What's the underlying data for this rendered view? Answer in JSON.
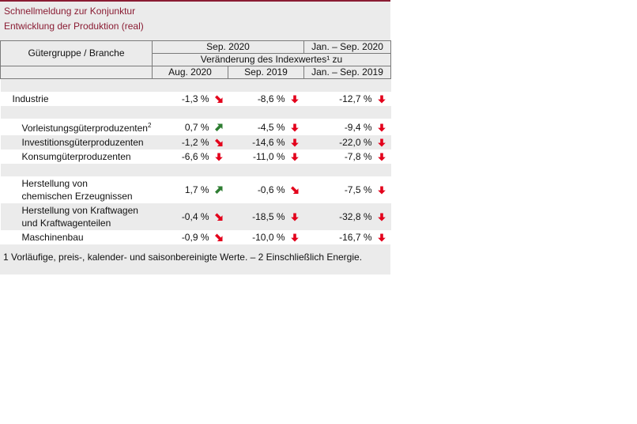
{
  "title_line1": "Schnellmeldung zur Konjunktur",
  "title_line2": "Entwicklung der Produktion (real)",
  "header": {
    "group_label": "Gütergruppe / Branche",
    "period1": "Sep. 2020",
    "period2": "Jan. – Sep. 2020",
    "change_label": "Veränderung des Indexwertes¹ zu",
    "col1": "Aug. 2020",
    "col2": "Sep. 2019",
    "col3": "Jan. – Sep. 2019"
  },
  "rows": [
    {
      "label": "Industrie",
      "v1": "-1,3 %",
      "a1": "down-right-arrow-icon",
      "v2": "-8,6 %",
      "a2": "down-arrow-icon",
      "v3": "-12,7 %",
      "a3": "down-arrow-icon"
    },
    {
      "label": "Vorleistungsgüterproduzenten",
      "sup": "2",
      "v1": "0,7 %",
      "a1": "up-right-arrow-icon",
      "v2": "-4,5 %",
      "a2": "down-arrow-icon",
      "v3": "-9,4 %",
      "a3": "down-arrow-icon"
    },
    {
      "label": "Investitionsgüterproduzenten",
      "v1": "-1,2 %",
      "a1": "down-right-arrow-icon",
      "v2": "-14,6 %",
      "a2": "down-arrow-icon",
      "v3": "-22,0 %",
      "a3": "down-arrow-icon"
    },
    {
      "label": "Konsumgüterproduzenten",
      "v1": "-6,6 %",
      "a1": "down-arrow-icon",
      "v2": "-11,0 %",
      "a2": "down-arrow-icon",
      "v3": "-7,8 %",
      "a3": "down-arrow-icon"
    },
    {
      "label_line1": "Herstellung von",
      "label_line2": "chemischen Erzeugnissen",
      "v1": "1,7 %",
      "a1": "up-right-arrow-icon",
      "v2": "-0,6 %",
      "a2": "down-right-arrow-icon",
      "v3": "-7,5 %",
      "a3": "down-arrow-icon"
    },
    {
      "label_line1": "Herstellung von Kraftwagen",
      "label_line2": "und Kraftwagenteilen",
      "v1": "-0,4 %",
      "a1": "down-right-arrow-icon",
      "v2": "-18,5 %",
      "a2": "down-arrow-icon",
      "v3": "-32,8 %",
      "a3": "down-arrow-icon"
    },
    {
      "label": "Maschinenbau",
      "v1": "-0,9 %",
      "a1": "down-right-arrow-icon",
      "v2": "-10,0 %",
      "a2": "down-arrow-icon",
      "v3": "-16,7 %",
      "a3": "down-arrow-icon"
    }
  ],
  "footnote": "1 Vorläufige, preis-, kalender- und saisonbereinigte Werte. – 2 Einschließlich Energie.",
  "colors": {
    "title": "#8a1c33",
    "down": "#e3001b",
    "up": "#2e7d32",
    "panel_bg": "#ebebeb"
  }
}
